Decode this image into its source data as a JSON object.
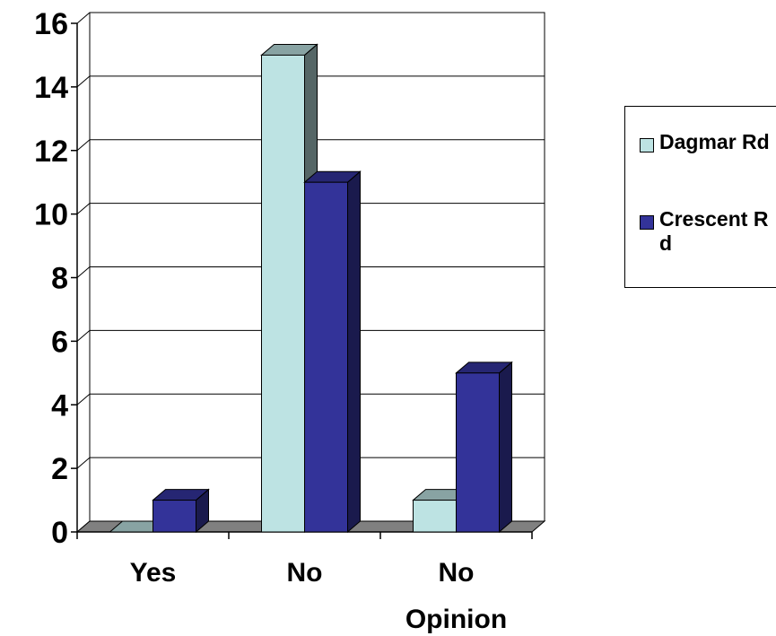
{
  "chart_data": {
    "type": "bar",
    "title": "",
    "xlabel": "",
    "ylabel": "",
    "categories": [
      "Yes",
      "No",
      "No Opinion"
    ],
    "series": [
      {
        "name": "Dagmar Rd",
        "values": [
          0,
          15,
          1
        ],
        "color": "#bde3e3"
      },
      {
        "name": "Crescent Rd",
        "values": [
          1,
          11,
          5
        ],
        "color": "#333399"
      }
    ],
    "yticks": [
      0,
      2,
      4,
      6,
      8,
      10,
      12,
      14,
      16
    ],
    "ylim": [
      0,
      16
    ],
    "grid": true,
    "legend_position": "right",
    "style": "3d-clustered-column"
  }
}
